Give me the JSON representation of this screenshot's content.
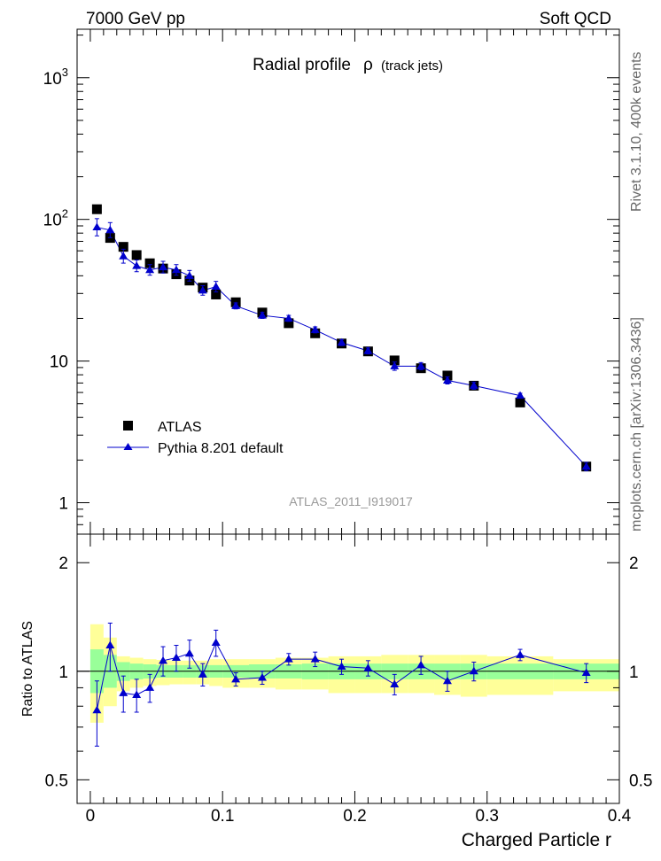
{
  "header": {
    "left": "7000 GeV pp",
    "right": "Soft QCD"
  },
  "side_labels": {
    "rivet": "Rivet 3.1.10,  400k events",
    "mcplots": "mcplots.cern.ch [arXiv:1306.3436]"
  },
  "chart_data": [
    {
      "type": "scatter",
      "title_main": "Radial profile",
      "title_symbol": "ρ",
      "title_suffix": "(track jets)",
      "watermark": "ATLAS_2011_I919017",
      "yscale": "log",
      "ylim": [
        0.6,
        2200
      ],
      "xlim": [
        -0.01,
        0.4
      ],
      "y_ticks": [
        {
          "value": 1,
          "base": "1",
          "exp": ""
        },
        {
          "value": 10,
          "base": "10",
          "exp": ""
        },
        {
          "value": 100,
          "base": "10",
          "exp": "2"
        },
        {
          "value": 1000,
          "base": "10",
          "exp": "3"
        }
      ],
      "legend": {
        "position": "bottom-left"
      },
      "series": [
        {
          "name": "ATLAS",
          "marker": "square",
          "color": "#000000",
          "x": [
            0.005,
            0.015,
            0.025,
            0.035,
            0.045,
            0.055,
            0.065,
            0.075,
            0.085,
            0.095,
            0.11,
            0.13,
            0.15,
            0.17,
            0.19,
            0.21,
            0.23,
            0.25,
            0.27,
            0.29,
            0.325,
            0.375
          ],
          "y": [
            118,
            74,
            64,
            56,
            49,
            45,
            41,
            37,
            33,
            29.5,
            26,
            22,
            18.5,
            15.7,
            13.3,
            11.7,
            10.1,
            8.9,
            7.9,
            6.7,
            5.1,
            1.8
          ]
        },
        {
          "name": "Pythia 8.201 default",
          "marker": "triangle",
          "color": "#0000cc",
          "x": [
            0.005,
            0.015,
            0.025,
            0.035,
            0.045,
            0.055,
            0.065,
            0.075,
            0.085,
            0.095,
            0.11,
            0.13,
            0.15,
            0.17,
            0.19,
            0.21,
            0.23,
            0.25,
            0.27,
            0.29,
            0.325,
            0.375
          ],
          "y": [
            88,
            84,
            55,
            47,
            44,
            46,
            44,
            40,
            31.5,
            33.5,
            24.5,
            21,
            20,
            16.6,
            13.5,
            11.8,
            9.2,
            9.2,
            7.3,
            6.7,
            5.7,
            1.8
          ],
          "err": [
            0.15,
            0.13,
            0.12,
            0.1,
            0.09,
            0.1,
            0.09,
            0.09,
            0.08,
            0.09,
            0.05,
            0.05,
            0.05,
            0.05,
            0.05,
            0.05,
            0.07,
            0.06,
            0.06,
            0.06,
            0.04,
            0.07
          ]
        }
      ]
    },
    {
      "type": "scatter",
      "ylabel": "Ratio to ATLAS",
      "xlabel": "Charged Particle r",
      "ylim": [
        0.43,
        2.4
      ],
      "yscale": "log",
      "xlim": [
        -0.01,
        0.4
      ],
      "y_ticks": [
        0.5,
        1,
        2
      ],
      "y_tick_labels": [
        "0.5",
        "1",
        "2"
      ],
      "x_ticks": [
        0,
        0.1,
        0.2,
        0.3,
        0.4
      ],
      "x_tick_labels": [
        "0",
        "0.1",
        "0.2",
        "0.3",
        "0.4"
      ],
      "bands": {
        "bins": [
          [
            0,
            0.01
          ],
          [
            0.01,
            0.02
          ],
          [
            0.02,
            0.03
          ],
          [
            0.03,
            0.04
          ],
          [
            0.04,
            0.05
          ],
          [
            0.05,
            0.06
          ],
          [
            0.06,
            0.07
          ],
          [
            0.07,
            0.08
          ],
          [
            0.08,
            0.09
          ],
          [
            0.09,
            0.1
          ],
          [
            0.1,
            0.12
          ],
          [
            0.12,
            0.14
          ],
          [
            0.14,
            0.16
          ],
          [
            0.16,
            0.18
          ],
          [
            0.18,
            0.2
          ],
          [
            0.2,
            0.22
          ],
          [
            0.22,
            0.24
          ],
          [
            0.24,
            0.26
          ],
          [
            0.26,
            0.28
          ],
          [
            0.28,
            0.3
          ],
          [
            0.3,
            0.35
          ],
          [
            0.35,
            0.4
          ]
        ],
        "inner": [
          [
            0.87,
            1.15
          ],
          [
            0.9,
            1.11
          ],
          [
            0.94,
            1.06
          ],
          [
            0.95,
            1.05
          ],
          [
            0.955,
            1.045
          ],
          [
            0.96,
            1.04
          ],
          [
            0.96,
            1.04
          ],
          [
            0.96,
            1.04
          ],
          [
            0.96,
            1.04
          ],
          [
            0.96,
            1.04
          ],
          [
            0.96,
            1.04
          ],
          [
            0.955,
            1.045
          ],
          [
            0.955,
            1.045
          ],
          [
            0.95,
            1.05
          ],
          [
            0.95,
            1.05
          ],
          [
            0.95,
            1.05
          ],
          [
            0.95,
            1.05
          ],
          [
            0.95,
            1.05
          ],
          [
            0.95,
            1.05
          ],
          [
            0.95,
            1.05
          ],
          [
            0.95,
            1.05
          ],
          [
            0.95,
            1.05
          ]
        ],
        "outer": [
          [
            0.72,
            1.35
          ],
          [
            0.8,
            1.24
          ],
          [
            0.88,
            1.1
          ],
          [
            0.9,
            1.09
          ],
          [
            0.91,
            1.08
          ],
          [
            0.915,
            1.075
          ],
          [
            0.92,
            1.07
          ],
          [
            0.92,
            1.07
          ],
          [
            0.92,
            1.07
          ],
          [
            0.91,
            1.08
          ],
          [
            0.9,
            1.08
          ],
          [
            0.9,
            1.08
          ],
          [
            0.89,
            1.09
          ],
          [
            0.89,
            1.09
          ],
          [
            0.87,
            1.1
          ],
          [
            0.87,
            1.1
          ],
          [
            0.87,
            1.11
          ],
          [
            0.87,
            1.11
          ],
          [
            0.86,
            1.11
          ],
          [
            0.85,
            1.11
          ],
          [
            0.86,
            1.1
          ],
          [
            0.88,
            1.08
          ]
        ]
      },
      "series": [
        {
          "name": "Pythia 8.201 default",
          "color": "#0000cc",
          "x": [
            0.005,
            0.015,
            0.025,
            0.035,
            0.045,
            0.055,
            0.065,
            0.075,
            0.085,
            0.095,
            0.11,
            0.13,
            0.15,
            0.17,
            0.19,
            0.21,
            0.23,
            0.25,
            0.27,
            0.29,
            0.325,
            0.375
          ],
          "y": [
            0.78,
            1.18,
            0.87,
            0.86,
            0.9,
            1.07,
            1.09,
            1.12,
            0.98,
            1.2,
            0.95,
            0.96,
            1.08,
            1.08,
            1.03,
            1.02,
            0.92,
            1.04,
            0.94,
            1.0,
            1.11,
            0.99
          ],
          "err": [
            0.16,
            0.18,
            0.1,
            0.09,
            0.08,
            0.1,
            0.09,
            0.1,
            0.07,
            0.1,
            0.04,
            0.04,
            0.04,
            0.05,
            0.05,
            0.05,
            0.06,
            0.06,
            0.06,
            0.06,
            0.04,
            0.06
          ]
        }
      ]
    }
  ]
}
